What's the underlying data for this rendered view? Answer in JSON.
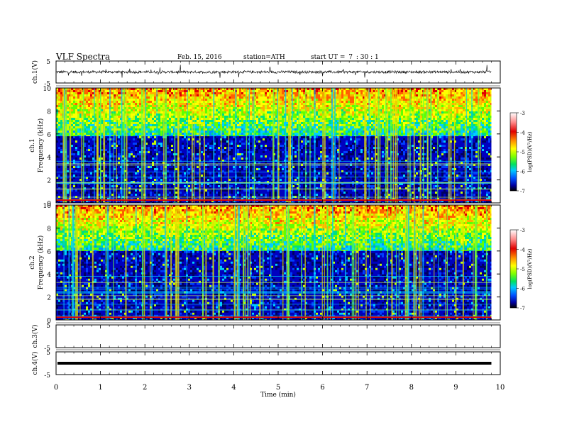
{
  "header": {
    "title": "VLF  Spectra",
    "date": "Feb. 15, 2016",
    "station": "station=ATH",
    "start_label": "start  UT  =",
    "start_h": "7",
    "start_m": ": 30 : 1"
  },
  "chart_data": [
    {
      "type": "line",
      "panel": "ch1-waveform",
      "ylabel": "ch.1(V)",
      "yticks": [
        "5",
        "-5"
      ],
      "ylim": [
        -5,
        5
      ],
      "series_color": "#000000",
      "description_values": {
        "baseline": 0,
        "typical_amplitude": 0.7
      }
    },
    {
      "type": "heatmap",
      "panel": "ch1-spectrogram",
      "ylabel_line1": "ch.1",
      "ylabel_line2": "Frequency  (kHz)",
      "yticks": [
        "10",
        "8",
        "6",
        "4",
        "2",
        "0"
      ],
      "ylim": [
        0,
        10
      ],
      "xlim": [
        0,
        10
      ],
      "colorbar": {
        "label": "log(PSD)(V²/Hz)",
        "ticks": [
          "-3",
          "-4",
          "-5",
          "-6",
          "-7"
        ],
        "range": [
          -7,
          -3
        ]
      },
      "dense_band_top_khz": 5.8
    },
    {
      "type": "heatmap",
      "panel": "ch2-spectrogram",
      "ylabel_line1": "ch.2",
      "ylabel_line2": "Frequency  (kHz)",
      "yticks": [
        "10",
        "8",
        "6",
        "4",
        "2",
        "0"
      ],
      "ylim": [
        0,
        10
      ],
      "xlim": [
        0,
        10
      ],
      "colorbar": {
        "label": "log(PSD)(V²/Hz)",
        "ticks": [
          "-3",
          "-4",
          "-5",
          "-6",
          "-7"
        ],
        "range": [
          -7,
          -3
        ]
      },
      "dense_band_top_khz": 6.0
    },
    {
      "type": "line",
      "panel": "ch3-waveform",
      "ylabel": "ch.3(V)",
      "yticks": [
        "5",
        "-5"
      ],
      "ylim": [
        -5,
        5
      ]
    },
    {
      "type": "line",
      "panel": "ch4-waveform",
      "ylabel": "ch.4(V)",
      "yticks": [
        "5",
        "-5"
      ],
      "ylim": [
        -5,
        5
      ],
      "constant_value": 0
    }
  ],
  "xaxis": {
    "label": "Time  (min)",
    "ticks": [
      "0",
      "1",
      "2",
      "3",
      "4",
      "5",
      "6",
      "7",
      "8",
      "9",
      "10"
    ],
    "xlim": [
      0,
      10
    ],
    "data_end_min": 9.8
  }
}
